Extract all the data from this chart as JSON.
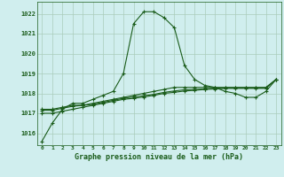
{
  "x": [
    0,
    1,
    2,
    3,
    4,
    5,
    6,
    7,
    8,
    9,
    10,
    11,
    12,
    13,
    14,
    15,
    16,
    17,
    18,
    19,
    20,
    21,
    22,
    23
  ],
  "line1": [
    1015.6,
    1016.5,
    1017.2,
    1017.5,
    1017.5,
    1017.7,
    1017.9,
    1018.1,
    1019.0,
    1021.5,
    1022.1,
    1022.1,
    1021.8,
    1021.3,
    1019.4,
    1018.7,
    1018.4,
    1018.3,
    1018.1,
    1018.0,
    1017.8,
    1017.8,
    1018.1,
    1018.7
  ],
  "line2": [
    1017.2,
    1017.2,
    1017.3,
    1017.4,
    1017.4,
    1017.5,
    1017.6,
    1017.7,
    1017.8,
    1017.9,
    1018.0,
    1018.1,
    1018.2,
    1018.3,
    1018.3,
    1018.3,
    1018.3,
    1018.3,
    1018.3,
    1018.3,
    1018.3,
    1018.3,
    1018.3,
    1018.7
  ],
  "line3": [
    1017.15,
    1017.15,
    1017.25,
    1017.35,
    1017.4,
    1017.45,
    1017.55,
    1017.65,
    1017.75,
    1017.82,
    1017.88,
    1017.95,
    1018.05,
    1018.12,
    1018.18,
    1018.2,
    1018.22,
    1018.27,
    1018.28,
    1018.28,
    1018.28,
    1018.28,
    1018.28,
    1018.7
  ],
  "line4": [
    1017.0,
    1017.0,
    1017.1,
    1017.2,
    1017.3,
    1017.4,
    1017.5,
    1017.6,
    1017.7,
    1017.75,
    1017.82,
    1017.9,
    1018.0,
    1018.05,
    1018.12,
    1018.15,
    1018.2,
    1018.22,
    1018.25,
    1018.25,
    1018.25,
    1018.25,
    1018.25,
    1018.7
  ],
  "bg_color": "#d0eeee",
  "line_color": "#1a5c1a",
  "grid_color": "#aaccbb",
  "ylabel_ticks": [
    1016,
    1017,
    1018,
    1019,
    1020,
    1021,
    1022
  ],
  "xlabel_ticks": [
    0,
    1,
    2,
    3,
    4,
    5,
    6,
    7,
    8,
    9,
    10,
    11,
    12,
    13,
    14,
    15,
    16,
    17,
    18,
    19,
    20,
    21,
    22,
    23
  ],
  "xlabel": "Graphe pression niveau de la mer (hPa)",
  "ylim": [
    1015.4,
    1022.6
  ],
  "xlim": [
    -0.5,
    23.5
  ]
}
